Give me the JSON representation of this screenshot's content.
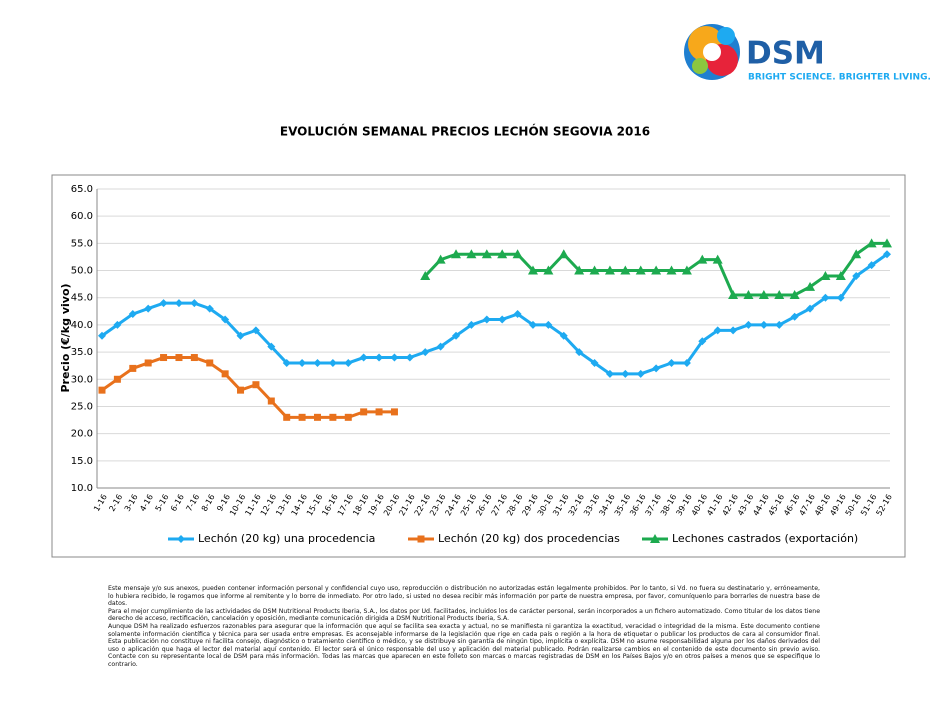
{
  "header": {
    "logo": "DSM",
    "tagline": "BRIGHT SCIENCE. BRIGHTER LIVING."
  },
  "chart_data": {
    "type": "line",
    "title": "EVOLUCIÓN SEMANAL PRECIOS LECHÓN SEGOVIA 2016",
    "y_label": "Precio (€/kg vivo)",
    "categories": [
      "1-16",
      "2-16",
      "3-16",
      "4-16",
      "5-16",
      "6-16",
      "7-16",
      "8-16",
      "9-16",
      "10-16",
      "11-16",
      "12-16",
      "13-16",
      "14-16",
      "15-16",
      "16-16",
      "17-16",
      "18-16",
      "19-16",
      "20-16",
      "21-16",
      "22-16",
      "23-16",
      "24-16",
      "25-16",
      "26-16",
      "27-16",
      "28-16",
      "29-16",
      "30-16",
      "31-16",
      "32-16",
      "33-16",
      "34-16",
      "35-16",
      "36-16",
      "37-16",
      "38-16",
      "39-16",
      "40-16",
      "41-16",
      "42-16",
      "43-16",
      "44-16",
      "45-16",
      "46-16",
      "47-16",
      "48-16",
      "49-16",
      "50-16",
      "51-16",
      "52-16"
    ],
    "ylim": [
      10,
      65
    ],
    "yticks": [
      {
        "value": 10,
        "label": "10.0"
      },
      {
        "value": 15,
        "label": "15.0"
      },
      {
        "value": 20,
        "label": "20.0"
      },
      {
        "value": 25,
        "label": "25.0"
      },
      {
        "value": 30,
        "label": "30.0"
      },
      {
        "value": 35,
        "label": "35.0"
      },
      {
        "value": 40,
        "label": "40.0"
      },
      {
        "value": 45,
        "label": "45.0"
      },
      {
        "value": 50,
        "label": "50.0"
      },
      {
        "value": 55,
        "label": "55.0"
      },
      {
        "value": 60,
        "label": "60.0"
      },
      {
        "value": 65,
        "label": "65.0"
      }
    ],
    "grid": true,
    "series": [
      {
        "name": "Lechón (20 kg) una procedencia",
        "color": "#1eaaf1",
        "marker": "diamond",
        "values": [
          38,
          40,
          42,
          43,
          44,
          44,
          44,
          43,
          41,
          38,
          39,
          36,
          33,
          33,
          33,
          33,
          33,
          34,
          34,
          34,
          34,
          35,
          36,
          38,
          40,
          41,
          41,
          42,
          40,
          40,
          38,
          35,
          33,
          31,
          31,
          31,
          32,
          33,
          33,
          37,
          39,
          39,
          40,
          40,
          40,
          41.5,
          43,
          45,
          45,
          49,
          51,
          53
        ]
      },
      {
        "name": "Lechón (20 kg) dos procedencias",
        "color": "#e8711c",
        "marker": "square",
        "values": [
          28,
          30,
          32,
          33,
          34,
          34,
          34,
          33,
          31,
          28,
          29,
          26,
          23,
          23,
          23,
          23,
          23,
          24,
          24,
          24,
          null,
          null,
          null,
          null,
          null,
          null,
          null,
          null,
          null,
          null,
          null,
          null,
          null,
          null,
          null,
          null,
          null,
          null,
          null,
          null,
          null,
          null,
          null,
          null,
          null,
          null,
          null,
          null,
          null,
          null,
          null,
          null
        ]
      },
      {
        "name": "Lechones castrados (exportación)",
        "color": "#1daa4f",
        "marker": "triangle",
        "values": [
          null,
          null,
          null,
          null,
          null,
          null,
          null,
          null,
          null,
          null,
          null,
          null,
          null,
          null,
          null,
          null,
          null,
          null,
          null,
          null,
          null,
          49,
          52,
          53,
          53,
          53,
          53,
          53,
          50,
          50,
          53,
          50,
          50,
          50,
          50,
          50,
          50,
          50,
          50,
          52,
          52,
          45.5,
          45.5,
          45.5,
          45.5,
          45.5,
          47,
          49,
          49,
          53,
          55,
          55
        ]
      }
    ]
  },
  "footer": {
    "paragraphs": [
      "Este mensaje y/o sus anexos, pueden contener información personal y confidencial cuyo uso, reproducción o distribución no autorizadas están legalmente prohibidos. Por lo tanto, si Vd. no fuera su destinatario y, erróneamente, lo hubiera recibido, le rogamos que informe al remitente y lo borre de inmediato. Por otro lado, si usted no desea recibir más información por parte de nuestra empresa, por favor, comuníquenlo para borrarles de nuestra base de datos.",
      "Para el mejor cumplimiento de las actividades de DSM Nutritional Products Iberia, S.A., los datos por Ud. facilitados, incluidos los de carácter personal, serán incorporados a un fichero automatizado. Como titular de los datos tiene derecho de acceso, rectificación, cancelación y oposición, mediante comunicación dirigida a DSM Nutritional Products Iberia, S.A.",
      "Aunque DSM ha realizado esfuerzos razonables para asegurar que la información que aquí se facilita sea exacta y actual, no se manifiesta ni garantiza la exactitud, veracidad o integridad de la misma. Este documento contiene solamente información científica y técnica para ser usada entre empresas. Es aconsejable informarse de la legislación que rige en cada país o región a la hora de etiquetar o publicar los productos de cara al consumidor final. Esta publicación no constituye ni facilita consejo, diagnóstico o tratamiento científico o médico, y se distribuye sin garantía de ningún tipo, implícita o explícita. DSM no asume responsabilidad alguna por los daños derivados del uso o aplicación que haga el lector del material aquí contenido. El lector será el único responsable del uso y aplicación del material publicado. Podrán realizarse cambios en el contenido de este documento sin previo aviso. Contacte con  su representante local de DSM para más información. Todas las marcas que aparecen en este folleto son marcas o marcas registradas de DSM en los Países Bajos y/o en otros países a menos que se especifique lo contrario."
    ]
  }
}
